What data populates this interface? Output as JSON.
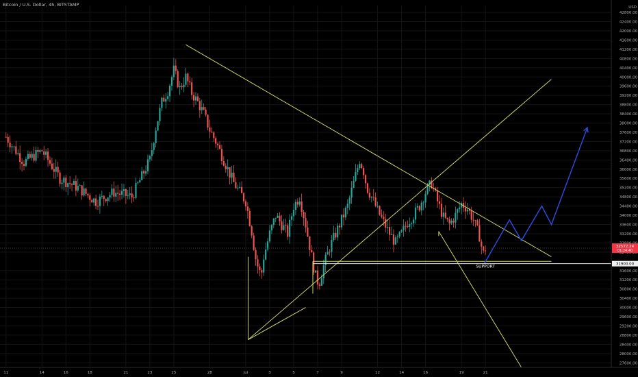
{
  "chart_data": {
    "type": "candlestick",
    "title": "Bitcoin / U.S. Dollar, 4h, BITSTAMP",
    "currency": "USD",
    "y_ticks": [
      42800,
      42400,
      42000,
      41600,
      41200,
      40800,
      40400,
      40000,
      39600,
      39200,
      38800,
      38400,
      38000,
      37600,
      37200,
      36800,
      36400,
      36000,
      35600,
      35200,
      34800,
      34400,
      34000,
      33600,
      33200,
      32800,
      32400,
      31600,
      31200,
      30800,
      30400,
      30000,
      29600,
      29200,
      28800,
      28400,
      28000,
      27600
    ],
    "ylim": [
      27400,
      43100
    ],
    "x_ticks": [
      "11",
      "14",
      "16",
      "18",
      "21",
      "23",
      "25",
      "28",
      "Jul",
      "3",
      "5",
      "7",
      "9",
      "12",
      "14",
      "16",
      "19",
      "21"
    ],
    "last_price": {
      "value": "32572.24",
      "countdown": "01:24:40",
      "color": "#f23645"
    },
    "support": {
      "label": "SUPPORT",
      "value": "31900.00"
    },
    "colors": {
      "up": "#26a69a",
      "down": "#ef5350",
      "trendline": "#ccd36a",
      "projection": "#2e49d6",
      "background": "#000000",
      "grid": "#141414"
    },
    "price_path": [
      [
        0.5,
        37400
      ],
      [
        2,
        36300
      ],
      [
        3.5,
        36800
      ],
      [
        5,
        35600
      ],
      [
        6.5,
        35200
      ],
      [
        8,
        34600
      ],
      [
        9.5,
        35000
      ],
      [
        11,
        34800
      ],
      [
        12.5,
        36400
      ],
      [
        13,
        37800
      ],
      [
        13.5,
        38900
      ],
      [
        14,
        39400
      ],
      [
        14.5,
        40300
      ],
      [
        15,
        39500
      ],
      [
        15.5,
        40000
      ],
      [
        16,
        39300
      ],
      [
        16.5,
        38900
      ],
      [
        17,
        38400
      ],
      [
        17.5,
        37700
      ],
      [
        18,
        37200
      ],
      [
        18.5,
        36600
      ],
      [
        19,
        36000
      ],
      [
        19.5,
        35400
      ],
      [
        20,
        35000
      ],
      [
        20.5,
        34600
      ],
      [
        21,
        33300
      ],
      [
        21.3,
        32200
      ],
      [
        21.6,
        31600
      ],
      [
        21.8,
        31400
      ],
      [
        22,
        32200
      ],
      [
        22.5,
        33200
      ],
      [
        23,
        34000
      ],
      [
        23.5,
        33600
      ],
      [
        24,
        33200
      ],
      [
        24.5,
        34400
      ],
      [
        25,
        34800
      ],
      [
        25.5,
        33600
      ],
      [
        26,
        32200
      ],
      [
        26.3,
        31400
      ],
      [
        26.6,
        31000
      ],
      [
        27,
        31800
      ],
      [
        27.5,
        32600
      ],
      [
        28,
        33200
      ],
      [
        28.5,
        33800
      ],
      [
        29,
        34400
      ],
      [
        29.5,
        35400
      ],
      [
        30,
        36400
      ],
      [
        30.3,
        36000
      ],
      [
        30.6,
        35200
      ],
      [
        31,
        34800
      ],
      [
        31.5,
        34200
      ],
      [
        32,
        33700
      ],
      [
        32.5,
        33200
      ],
      [
        33,
        32800
      ],
      [
        33.5,
        33200
      ],
      [
        34,
        33700
      ],
      [
        34.5,
        34000
      ],
      [
        35,
        34400
      ],
      [
        35.5,
        35000
      ],
      [
        36,
        35400
      ],
      [
        36.5,
        34600
      ],
      [
        37,
        33900
      ],
      [
        37.5,
        33600
      ],
      [
        38,
        34000
      ],
      [
        38.5,
        34500
      ],
      [
        39,
        34300
      ],
      [
        39.5,
        33800
      ],
      [
        40,
        33100
      ],
      [
        40.3,
        32300
      ],
      [
        40.6,
        32700
      ]
    ],
    "annotations": {
      "trendlines": [
        {
          "from": [
            15.5,
            41400
          ],
          "to": [
            46,
            32200
          ]
        },
        {
          "from": [
            20.7,
            28600
          ],
          "to": [
            46,
            39900
          ]
        },
        {
          "from": [
            20.7,
            32200
          ],
          "to": [
            20.7,
            28600
          ]
        },
        {
          "from": [
            20.7,
            28600
          ],
          "to": [
            25.5,
            30000
          ]
        },
        {
          "from": [
            36.6,
            33300
          ],
          "to": [
            43.5,
            27400
          ]
        },
        {
          "from": [
            36.6,
            33300
          ],
          "to": [
            36.6,
            33100
          ]
        },
        {
          "from": [
            26.1,
            32000
          ],
          "to": [
            46,
            32000
          ]
        },
        {
          "from": [
            26.1,
            32000
          ],
          "to": [
            26.1,
            30600
          ]
        }
      ],
      "projection_path": [
        [
          40.4,
          31900
        ],
        [
          42.5,
          33800
        ],
        [
          43.5,
          32900
        ],
        [
          45.2,
          34400
        ],
        [
          46.0,
          33600
        ],
        [
          49.0,
          37800
        ]
      ]
    }
  }
}
